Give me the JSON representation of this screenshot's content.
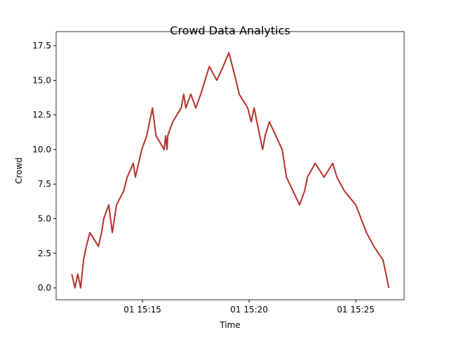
{
  "chart_data": {
    "type": "line",
    "title": "Crowd Data Analytics",
    "x_label": "Time",
    "y_label": "Crowd",
    "color": "#b5312a",
    "x": [
      "01 15:11:41",
      "01 15:11:50",
      "01 15:11:58",
      "01 15:12:06",
      "01 15:12:14",
      "01 15:12:22",
      "01 15:12:32",
      "01 15:12:56",
      "01 15:13:05",
      "01 15:13:11",
      "01 15:13:25",
      "01 15:13:35",
      "01 15:13:47",
      "01 15:14:07",
      "01 15:14:17",
      "01 15:14:34",
      "01 15:14:40",
      "01 15:14:58",
      "01 15:15:12",
      "01 15:15:20",
      "01 15:15:28",
      "01 15:15:38",
      "01 15:16:01",
      "01 15:16:05",
      "01 15:16:09",
      "01 15:16:11",
      "01 15:16:25",
      "01 15:16:49",
      "01 15:16:56",
      "01 15:17:02",
      "01 15:17:16",
      "01 15:17:30",
      "01 15:17:44",
      "01 15:18:08",
      "01 15:18:29",
      "01 15:18:47",
      "01 15:19:03",
      "01 15:19:23",
      "01 15:19:32",
      "01 15:19:56",
      "01 15:20:06",
      "01 15:20:14",
      "01 15:20:38",
      "01 15:20:45",
      "01 15:20:57",
      "01 15:21:33",
      "01 15:21:45",
      "01 15:22:22",
      "01 15:22:36",
      "01 15:22:44",
      "01 15:23:06",
      "01 15:23:31",
      "01 15:23:55",
      "01 15:24:07",
      "01 15:24:28",
      "01 15:25:00",
      "01 15:25:30",
      "01 15:25:51",
      "01 15:26:17",
      "01 15:26:25",
      "01 15:26:33"
    ],
    "values": [
      1,
      0,
      1,
      0,
      2,
      3,
      4,
      3,
      4,
      5,
      6,
      4,
      6,
      7,
      8,
      9,
      8,
      10,
      11,
      12,
      13,
      11,
      10,
      11,
      10,
      11,
      12,
      13,
      14,
      13,
      14,
      13,
      14,
      16,
      15,
      16,
      17,
      15,
      14,
      13,
      12,
      13,
      10,
      11,
      12,
      10,
      8,
      6,
      7,
      8,
      9,
      8,
      9,
      8,
      7,
      6,
      4,
      3,
      2,
      1,
      0
    ],
    "xlim": [
      "01 15:10:57",
      "01 15:27:16"
    ],
    "xticks": [
      "01 15:15",
      "01 15:20",
      "01 15:25"
    ],
    "ylim": [
      -0.86,
      18.52
    ],
    "yticks": [
      {
        "value": 0,
        "label": "0.0"
      },
      2.5,
      {
        "value": 5,
        "label": "5.0"
      },
      7.5,
      {
        "value": 10,
        "label": "10.0"
      },
      12.5,
      {
        "value": 15,
        "label": "15.0"
      },
      17.5
    ],
    "grid": false
  }
}
